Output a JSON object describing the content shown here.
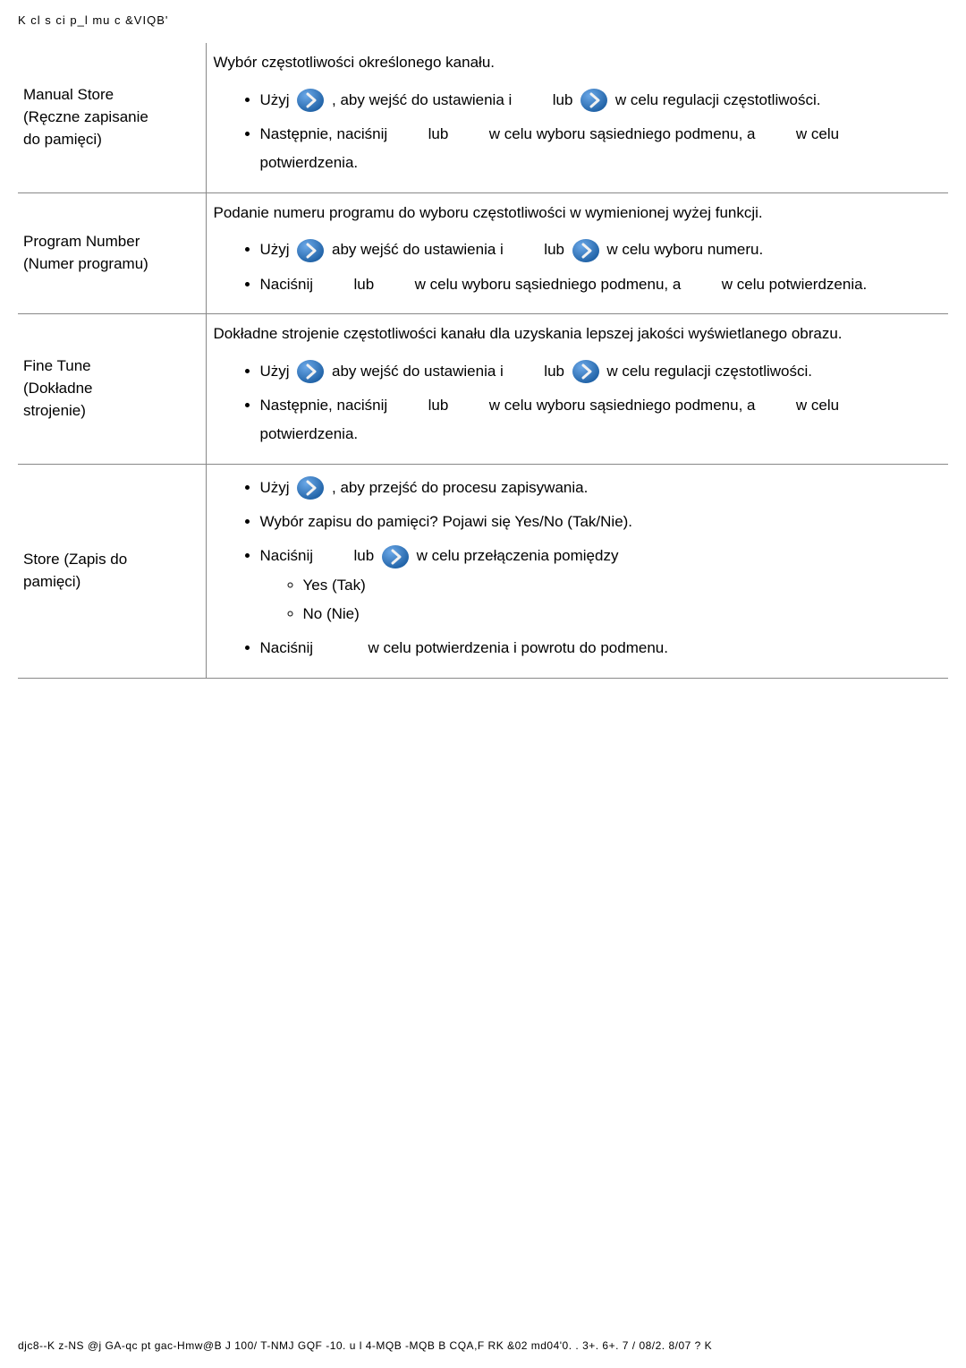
{
  "icon_colors": {
    "blue_light": "#6ba8e8",
    "blue_dark": "#2264a8",
    "chevron_fill": "#f2f2f2"
  },
  "page_header": "K cl s ci p_l mu c &VIQB'",
  "footer": "djc8--K z-NS @j GA-qc pt gac-Hmw@B J 100/ T-NMJ GQF -10. u l 4-MQB -MQB B CQA,F RK  &02 md04'0. . 3+. 6+. 7 / 08/2. 8/07 ? K",
  "rows": [
    {
      "label_html": "Manual Store<br>(Ręczne zapisanie<br>do pamięci)",
      "intro": "Wybór częstotliwości określonego kanału.",
      "bullets": [
        {
          "pre": "Użyj ",
          "icon1": true,
          "mid": " , aby wejść do ustawienia i ",
          "gap": true,
          "lub": " lub ",
          "icon2": true,
          "post": " w celu regulacji częstotliwości."
        },
        {
          "text_parts": [
            "Następnie, naciśnij ",
            "GAP",
            " lub ",
            "GAP",
            " w celu wyboru sąsiedniego podmenu, a ",
            "GAP",
            " w celu potwierdzenia."
          ]
        }
      ]
    },
    {
      "label_html": "Program Number<br>(Numer programu)",
      "intro": "Podanie numeru programu do wyboru częstotliwości w wymienionej wyżej funkcji.",
      "bullets": [
        {
          "pre": "Użyj ",
          "icon1": true,
          "mid": " aby wejść do ustawienia i ",
          "gap": true,
          "lub": " lub ",
          "icon2": true,
          "post": " w celu wyboru numeru."
        },
        {
          "text_parts": [
            "Naciśnij ",
            "GAP",
            " lub ",
            "GAP",
            " w celu wyboru sąsiedniego podmenu, a ",
            "GAP",
            " w celu potwierdzenia."
          ]
        }
      ]
    },
    {
      "label_html": "Fine Tune<br>(Dokładne<br>strojenie)",
      "intro": "Dokładne strojenie częstotliwości kanału dla uzyskania lepszej jakości wyświetlanego obrazu.",
      "bullets": [
        {
          "pre": "Użyj ",
          "icon1": true,
          "mid": " aby wejść do ustawienia i ",
          "gap": true,
          "lub": " lub ",
          "icon2": true,
          "post": " w celu regulacji częstotliwości."
        },
        {
          "text_parts": [
            "Następnie, naciśnij ",
            "GAP",
            " lub ",
            "GAP",
            " w celu wyboru sąsiedniego podmenu, a ",
            "GAP",
            " w celu potwierdzenia."
          ]
        }
      ]
    },
    {
      "label_html": "Store (Zapis do<br>pamięci)",
      "intro": null,
      "bullets": [
        {
          "pre": "Użyj ",
          "icon1": true,
          "post": " , aby przejść do procesu zapisywania."
        },
        {
          "plain": "Wybór zapisu do pamięci? Pojawi się Yes/No (Tak/Nie)."
        },
        {
          "pre": "Naciśnij ",
          "gap": true,
          "lub": " lub ",
          "icon2": true,
          "post": " w celu przełączenia pomiędzy",
          "sub": [
            "Yes (Tak)",
            "No (Nie)"
          ]
        },
        {
          "text_parts": [
            "Naciśnij ",
            "GAPW",
            " w celu potwierdzenia i powrotu do podmenu."
          ]
        }
      ]
    }
  ]
}
